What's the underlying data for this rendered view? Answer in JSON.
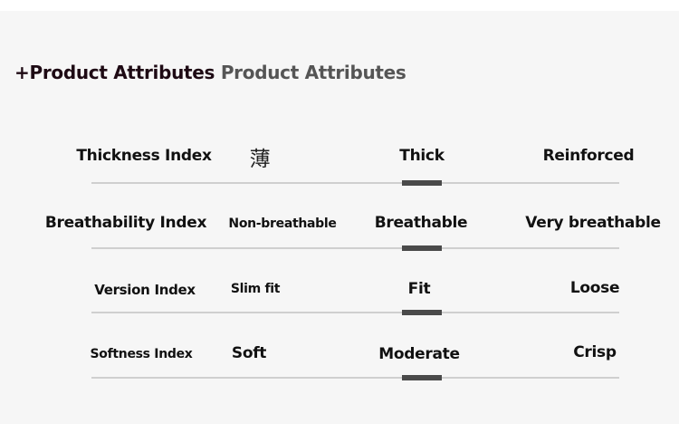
{
  "header": {
    "title_primary": "+Product Attributes",
    "title_secondary": "Product Attributes"
  },
  "attributes": [
    {
      "label": "Thickness Index",
      "options": [
        "薄",
        "Thick",
        "Reinforced"
      ],
      "selected": "Thick",
      "selected_index": 1
    },
    {
      "label": "Breathability Index",
      "options": [
        "Non-breathable",
        "Breathable",
        "Very breathable"
      ],
      "selected": "Breathable",
      "selected_index": 1
    },
    {
      "label": "Version Index",
      "options": [
        "Slim fit",
        "Fit",
        "Loose"
      ],
      "selected": "Fit",
      "selected_index": 1
    },
    {
      "label": "Softness Index",
      "options": [
        "Soft",
        "Moderate",
        "Crisp"
      ],
      "selected": "Moderate",
      "selected_index": 1
    }
  ],
  "colors": {
    "title_primary": "#1e0a14",
    "title_secondary": "#555555",
    "marker": "#4a4a4a",
    "track": "#cfcfcf"
  }
}
